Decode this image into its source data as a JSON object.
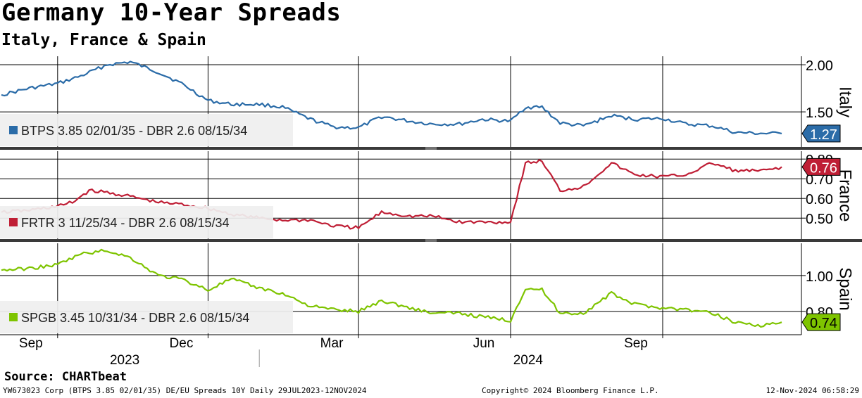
{
  "title": "Germany 10-Year Spreads",
  "subtitle": "Italy, France & Spain",
  "source": "Source: CHARTbeat",
  "footer": {
    "left": "YW673023 Corp (BTPS 3.85 02/01/35) DE/EU Spreads 10Y  Daily 29JUL2023-12NOV2024",
    "middle": "Copyright© 2024 Bloomberg Finance L.P.",
    "right": "12-Nov-2024 06:58:29"
  },
  "x_axis": {
    "month_labels": [
      "Sep",
      "Dec",
      "Mar",
      "Jun",
      "Sep"
    ],
    "year_labels": [
      "2023",
      "2024"
    ]
  },
  "chart_data": [
    {
      "type": "line",
      "panel_label": "Italy",
      "series": [
        {
          "name": "BTPS 3.85 02/01/35 - DBR 2.6 08/15/34",
          "color": "#2b6ca8",
          "last_value": "1.27",
          "x": [
            "2023-07-29",
            "2023-08-15",
            "2023-09-01",
            "2023-09-15",
            "2023-10-01",
            "2023-10-15",
            "2023-11-01",
            "2023-11-15",
            "2023-12-01",
            "2023-12-15",
            "2024-01-01",
            "2024-01-15",
            "2024-02-01",
            "2024-02-15",
            "2024-03-01",
            "2024-03-15",
            "2024-04-01",
            "2024-04-15",
            "2024-05-01",
            "2024-05-15",
            "2024-06-01",
            "2024-06-10",
            "2024-06-20",
            "2024-07-01",
            "2024-07-15",
            "2024-08-01",
            "2024-08-15",
            "2024-09-01",
            "2024-09-15",
            "2024-10-01",
            "2024-10-15",
            "2024-11-01",
            "2024-11-12"
          ],
          "y": [
            1.68,
            1.75,
            1.8,
            1.88,
            2.0,
            2.03,
            1.92,
            1.8,
            1.62,
            1.58,
            1.58,
            1.55,
            1.42,
            1.34,
            1.33,
            1.45,
            1.4,
            1.37,
            1.37,
            1.42,
            1.4,
            1.55,
            1.55,
            1.38,
            1.35,
            1.46,
            1.42,
            1.43,
            1.37,
            1.35,
            1.28,
            1.27,
            1.27
          ]
        }
      ],
      "y_ticks": [
        1.5,
        2.0
      ],
      "y_tick_labels": [
        "1.50",
        "2.00"
      ],
      "ylim": [
        1.12,
        2.09
      ]
    },
    {
      "type": "line",
      "panel_label": "France",
      "series": [
        {
          "name": "FRTR 3 11/25/34 - DBR 2.6 08/15/34",
          "color": "#bf1e35",
          "last_value": "0.76",
          "x": [
            "2023-07-29",
            "2023-08-15",
            "2023-09-01",
            "2023-09-10",
            "2023-09-20",
            "2023-10-01",
            "2023-10-15",
            "2023-11-01",
            "2023-11-15",
            "2023-12-01",
            "2023-12-15",
            "2024-01-01",
            "2024-01-15",
            "2024-02-01",
            "2024-02-15",
            "2024-03-01",
            "2024-03-15",
            "2024-04-01",
            "2024-04-15",
            "2024-05-01",
            "2024-05-15",
            "2024-06-01",
            "2024-06-10",
            "2024-06-20",
            "2024-07-01",
            "2024-07-15",
            "2024-08-01",
            "2024-08-15",
            "2024-09-01",
            "2024-09-15",
            "2024-10-01",
            "2024-10-15",
            "2024-11-01",
            "2024-11-12"
          ],
          "y": [
            0.53,
            0.54,
            0.56,
            0.58,
            0.64,
            0.63,
            0.61,
            0.58,
            0.57,
            0.55,
            0.52,
            0.5,
            0.49,
            0.49,
            0.46,
            0.45,
            0.53,
            0.51,
            0.51,
            0.48,
            0.48,
            0.48,
            0.78,
            0.79,
            0.64,
            0.66,
            0.78,
            0.72,
            0.71,
            0.72,
            0.78,
            0.74,
            0.74,
            0.76
          ]
        }
      ],
      "y_ticks": [
        0.5,
        0.6,
        0.7,
        0.8
      ],
      "y_tick_labels": [
        "0.50",
        "0.60",
        "0.70",
        "0.80"
      ],
      "ylim": [
        0.39,
        0.84
      ]
    },
    {
      "type": "line",
      "panel_label": "Spain",
      "series": [
        {
          "name": "SPGB 3.45 10/31/34 - DBR 2.6 08/15/34",
          "color": "#7ec400",
          "last_value": "0.74",
          "x": [
            "2023-07-29",
            "2023-08-15",
            "2023-09-01",
            "2023-09-15",
            "2023-10-01",
            "2023-10-15",
            "2023-11-01",
            "2023-11-15",
            "2023-12-01",
            "2023-12-15",
            "2024-01-01",
            "2024-01-15",
            "2024-02-01",
            "2024-02-15",
            "2024-03-01",
            "2024-03-15",
            "2024-04-01",
            "2024-04-15",
            "2024-05-01",
            "2024-05-15",
            "2024-06-01",
            "2024-06-10",
            "2024-06-20",
            "2024-07-01",
            "2024-07-15",
            "2024-08-01",
            "2024-08-15",
            "2024-09-01",
            "2024-09-15",
            "2024-10-01",
            "2024-10-15",
            "2024-11-01",
            "2024-11-12"
          ],
          "y": [
            1.03,
            1.04,
            1.06,
            1.12,
            1.14,
            1.1,
            1.0,
            0.98,
            0.92,
            0.98,
            0.93,
            0.9,
            0.83,
            0.81,
            0.8,
            0.86,
            0.82,
            0.79,
            0.79,
            0.77,
            0.75,
            0.93,
            0.92,
            0.79,
            0.79,
            0.9,
            0.84,
            0.82,
            0.81,
            0.79,
            0.74,
            0.72,
            0.74
          ]
        }
      ],
      "y_ticks": [
        0.8,
        1.0
      ],
      "y_tick_labels": [
        "0.80",
        "1.00"
      ],
      "ylim": [
        0.67,
        1.18
      ]
    }
  ]
}
